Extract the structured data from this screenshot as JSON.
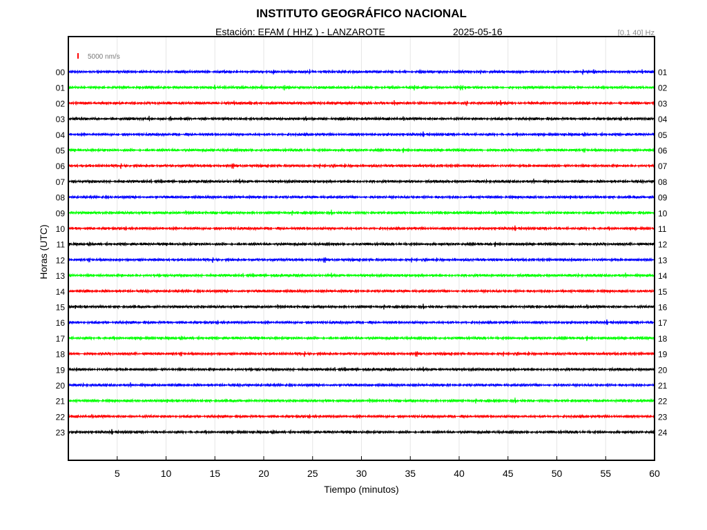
{
  "header": {
    "title": "INSTITUTO GEOGRÁFICO NACIONAL",
    "station": "Estación:  EFAM ( HHZ ) - LANZAROTE",
    "date": "2025-05-16",
    "filter": "[0.1 40] Hz"
  },
  "chart_data": {
    "type": "line",
    "title": "INSTITUTO GEOGRÁFICO NACIONAL",
    "xlabel": "Tiempo (minutos)",
    "ylabel": "Horas (UTC)",
    "xlim": [
      0,
      60
    ],
    "x_ticks": [
      5,
      10,
      15,
      20,
      25,
      30,
      35,
      40,
      45,
      50,
      55,
      60
    ],
    "grid": true,
    "scale_label": "5000 nm/s",
    "scale_color": "#ff0000",
    "left_hours": [
      "00",
      "01",
      "02",
      "03",
      "04",
      "05",
      "06",
      "07",
      "08",
      "09",
      "10",
      "11",
      "12",
      "13",
      "14",
      "15",
      "16",
      "17",
      "18",
      "19",
      "20",
      "21",
      "22",
      "23"
    ],
    "right_hours": [
      "01",
      "02",
      "03",
      "04",
      "05",
      "06",
      "07",
      "08",
      "09",
      "10",
      "11",
      "12",
      "13",
      "14",
      "15",
      "16",
      "17",
      "18",
      "19",
      "20",
      "21",
      "22",
      "23",
      "24"
    ],
    "trace_colors": [
      "#0000ff",
      "#00ff00",
      "#ff0000",
      "#000000"
    ]
  }
}
